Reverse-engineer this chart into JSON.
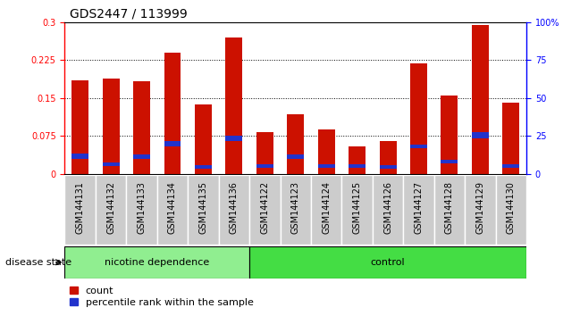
{
  "title": "GDS2447 / 113999",
  "categories": [
    "GSM144131",
    "GSM144132",
    "GSM144133",
    "GSM144134",
    "GSM144135",
    "GSM144136",
    "GSM144122",
    "GSM144123",
    "GSM144124",
    "GSM144125",
    "GSM144126",
    "GSM144127",
    "GSM144128",
    "GSM144129",
    "GSM144130"
  ],
  "red_values": [
    0.185,
    0.188,
    0.183,
    0.24,
    0.137,
    0.27,
    0.082,
    0.118,
    0.088,
    0.055,
    0.065,
    0.218,
    0.155,
    0.295,
    0.14
  ],
  "blue_bottom": [
    0.03,
    0.015,
    0.03,
    0.055,
    0.01,
    0.065,
    0.012,
    0.03,
    0.012,
    0.012,
    0.01,
    0.05,
    0.02,
    0.07,
    0.012
  ],
  "blue_height": [
    0.01,
    0.008,
    0.008,
    0.01,
    0.007,
    0.01,
    0.007,
    0.008,
    0.007,
    0.007,
    0.007,
    0.008,
    0.008,
    0.012,
    0.007
  ],
  "groups": [
    {
      "label": "nicotine dependence",
      "start": 0,
      "end": 6,
      "color": "#90EE90"
    },
    {
      "label": "control",
      "start": 6,
      "end": 15,
      "color": "#44DD44"
    }
  ],
  "group_label": "disease state",
  "ylim_left": [
    0,
    0.3
  ],
  "ylim_right": [
    0,
    100
  ],
  "yticks_left": [
    0,
    0.075,
    0.15,
    0.225,
    0.3
  ],
  "ytick_labels_left": [
    "0",
    "0.075",
    "0.15",
    "0.225",
    "0.3"
  ],
  "yticks_right": [
    0,
    25,
    50,
    75,
    100
  ],
  "ytick_labels_right": [
    "0",
    "25",
    "50",
    "75",
    "100%"
  ],
  "bar_color": "#CC1100",
  "blue_color": "#2233CC",
  "grid_color": "#000000",
  "background_color": "#FFFFFF",
  "title_fontsize": 10,
  "tick_fontsize": 7,
  "label_fontsize": 8,
  "bar_width": 0.55
}
